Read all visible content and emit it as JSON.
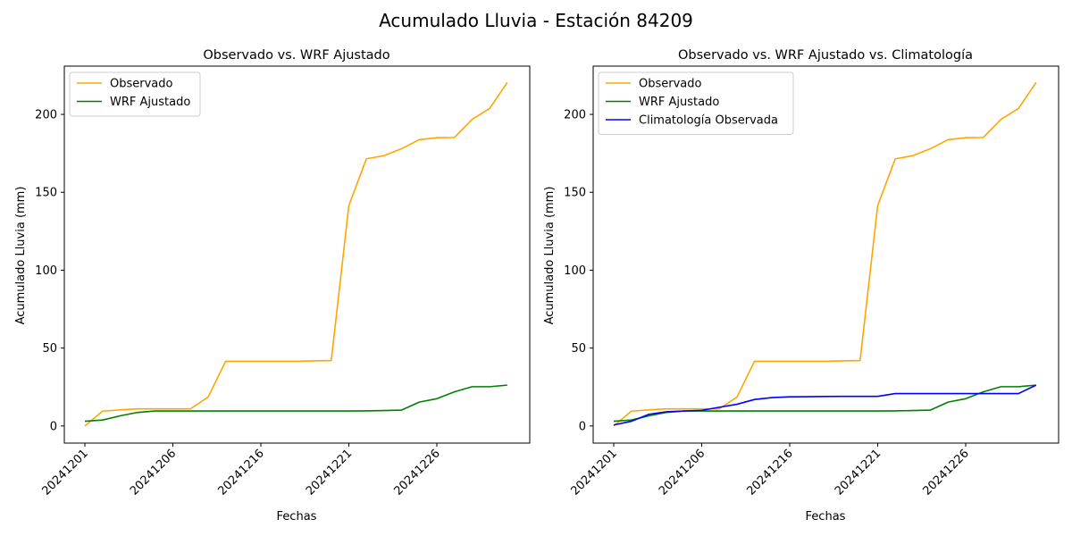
{
  "figure": {
    "suptitle": "Acumulado Lluvia - Estación 84209"
  },
  "chart_data": [
    {
      "type": "line",
      "title": "Observado vs. WRF Ajustado",
      "xlabel": "Fechas",
      "ylabel": "Acumulado Lluvia (mm)",
      "xticks": [
        "20241201",
        "20241206",
        "20241216",
        "20241221",
        "20241226"
      ],
      "yticks": [
        0,
        50,
        100,
        150,
        200
      ],
      "ylim": [
        -11,
        231
      ],
      "legend": "top-left",
      "grid": false,
      "series": [
        {
          "name": "Observado",
          "color": "#FFA500",
          "values": [
            0,
            9.5,
            10.3,
            11,
            11,
            11,
            11,
            18.5,
            41.5,
            41.5,
            41.5,
            41.5,
            41.5,
            41.8,
            42,
            141.5,
            171.5,
            173.5,
            178,
            183.8,
            185,
            185.2,
            196.8,
            203.8,
            220.5
          ]
        },
        {
          "name": "WRF Ajustado",
          "color": "#008000",
          "values": [
            3,
            3.8,
            6.5,
            8.7,
            9.6,
            9.6,
            9.6,
            9.6,
            9.6,
            9.6,
            9.6,
            9.6,
            9.6,
            9.6,
            9.6,
            9.6,
            9.7,
            9.9,
            10.2,
            15.3,
            17.5,
            21.9,
            25.2,
            25.2,
            26.2
          ]
        }
      ]
    },
    {
      "type": "line",
      "title": "Observado vs. WRF Ajustado vs. Climatología",
      "xlabel": "Fechas",
      "ylabel": "Acumulado Lluvia (mm)",
      "xticks": [
        "20241201",
        "20241206",
        "20241216",
        "20241221",
        "20241226"
      ],
      "yticks": [
        0,
        50,
        100,
        150,
        200
      ],
      "ylim": [
        -11,
        231
      ],
      "legend": "top-left",
      "grid": false,
      "series": [
        {
          "name": "Observado",
          "color": "#FFA500",
          "values": [
            0,
            9.5,
            10.3,
            11,
            11,
            11,
            11,
            18.5,
            41.5,
            41.5,
            41.5,
            41.5,
            41.5,
            41.8,
            42,
            141.5,
            171.5,
            173.5,
            178,
            183.8,
            185,
            185.2,
            196.8,
            203.8,
            220.5
          ]
        },
        {
          "name": "WRF Ajustado",
          "color": "#008000",
          "values": [
            3,
            3.8,
            6.5,
            8.7,
            9.6,
            9.6,
            9.6,
            9.6,
            9.6,
            9.6,
            9.6,
            9.6,
            9.6,
            9.6,
            9.6,
            9.6,
            9.7,
            9.9,
            10.2,
            15.3,
            17.5,
            21.9,
            25.2,
            25.2,
            26.2
          ]
        },
        {
          "name": "Climatología Observada",
          "color": "#0000FF",
          "values": [
            0.6,
            3,
            7.5,
            9.1,
            9.6,
            10,
            12,
            13.9,
            17,
            18.2,
            18.7,
            18.8,
            18.9,
            19,
            19,
            19,
            20.8,
            20.8,
            20.8,
            20.8,
            20.8,
            20.8,
            20.8,
            20.8,
            26.2
          ]
        }
      ]
    }
  ]
}
